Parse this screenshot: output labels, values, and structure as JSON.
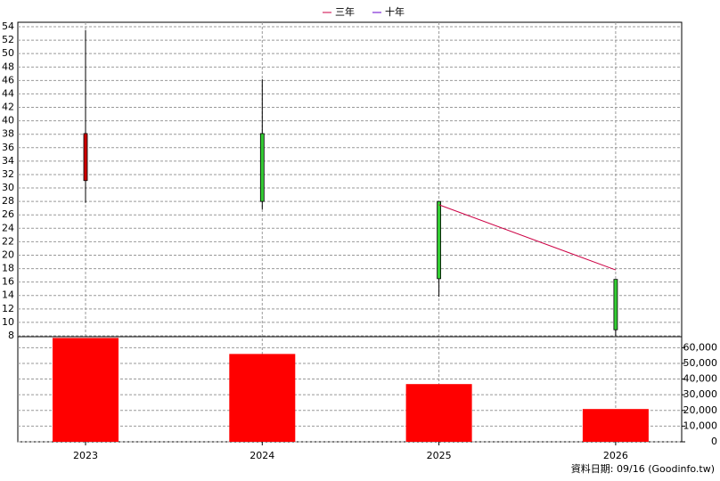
{
  "chart_data": [
    {
      "type": "candlestick",
      "categories": [
        "2023",
        "2024",
        "2025",
        "2026"
      ],
      "open": [
        31.1,
        38.1,
        28,
        16.4
      ],
      "high": [
        53.5,
        46.2,
        28,
        16.4
      ],
      "low": [
        27.8,
        26.8,
        13.8,
        8
      ],
      "close": [
        38.1,
        28,
        16.5,
        8.9
      ],
      "up_color": "#cc0000",
      "down_color": "#33cc33",
      "series": [
        {
          "name": "三年",
          "color": "#cc0044",
          "values": [
            null,
            null,
            27.5,
            17.8
          ]
        },
        {
          "name": "十年",
          "color": "#6600cc",
          "values": [
            null,
            null,
            null,
            null
          ]
        }
      ],
      "ylim": [
        8,
        54
      ],
      "yticks": [
        8,
        10,
        12,
        14,
        16,
        18,
        20,
        22,
        24,
        26,
        28,
        30,
        32,
        34,
        36,
        38,
        40,
        42,
        44,
        46,
        48,
        50,
        52,
        54
      ],
      "grid": true
    },
    {
      "type": "bar",
      "categories": [
        "2023",
        "2024",
        "2025",
        "2026"
      ],
      "values": [
        66200,
        56000,
        36800,
        20900
      ],
      "color": "#ff0000",
      "ylim": [
        0,
        67000
      ],
      "yticks": [
        0,
        {
          "value": 10000,
          "label": "10,000"
        },
        {
          "value": 20000,
          "label": "20,000"
        },
        {
          "value": 30000,
          "label": "30,000"
        },
        {
          "value": 40000,
          "label": "40,000"
        },
        {
          "value": 50000,
          "label": "50,000"
        },
        {
          "value": 60000,
          "label": "60,000"
        }
      ],
      "grid": true
    }
  ],
  "footer": "資料日期: 09/16  (Goodinfo.tw)"
}
